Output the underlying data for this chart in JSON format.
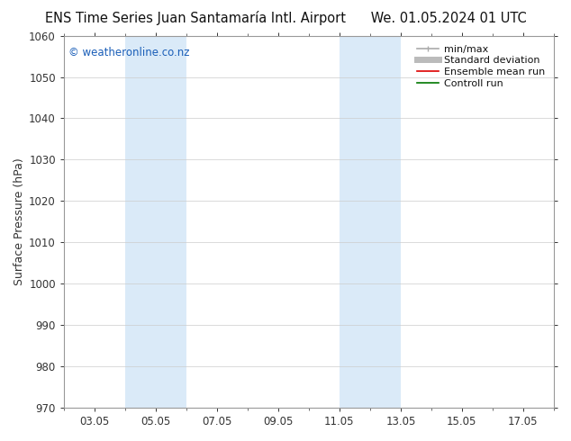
{
  "title_left": "ENS Time Series Juan Santamaría Intl. Airport",
  "title_right": "We. 01.05.2024 01 UTC",
  "ylabel": "Surface Pressure (hPa)",
  "watermark": "© weatheronline.co.nz",
  "watermark_color": "#1a5eb8",
  "ylim_bottom": 970,
  "ylim_top": 1060,
  "ytick_step": 10,
  "xtick_labels": [
    "03.05",
    "05.05",
    "07.05",
    "09.05",
    "11.05",
    "13.05",
    "15.05",
    "17.05"
  ],
  "xtick_values": [
    2,
    4,
    6,
    8,
    10,
    12,
    14,
    16
  ],
  "xmin": 1,
  "xmax": 17,
  "shaded_bands": [
    {
      "x_start": 3.0,
      "x_end": 4.0
    },
    {
      "x_start": 4.0,
      "x_end": 5.0
    },
    {
      "x_start": 10.0,
      "x_end": 11.0
    },
    {
      "x_start": 11.0,
      "x_end": 12.0
    }
  ],
  "shade_color": "#daeaf8",
  "bg_color": "#ffffff",
  "spine_color": "#999999",
  "tick_color": "#333333",
  "grid_color": "#cccccc",
  "legend_items": [
    {
      "label": "min/max",
      "color": "#aaaaaa",
      "lw": 1.2
    },
    {
      "label": "Standard deviation",
      "color": "#bbbbbb",
      "lw": 5
    },
    {
      "label": "Ensemble mean run",
      "color": "#dd0000",
      "lw": 1.2
    },
    {
      "label": "Controll run",
      "color": "#007700",
      "lw": 1.2
    }
  ],
  "title_fontsize": 10.5,
  "ylabel_fontsize": 9,
  "tick_fontsize": 8.5,
  "watermark_fontsize": 8.5,
  "legend_fontsize": 8
}
